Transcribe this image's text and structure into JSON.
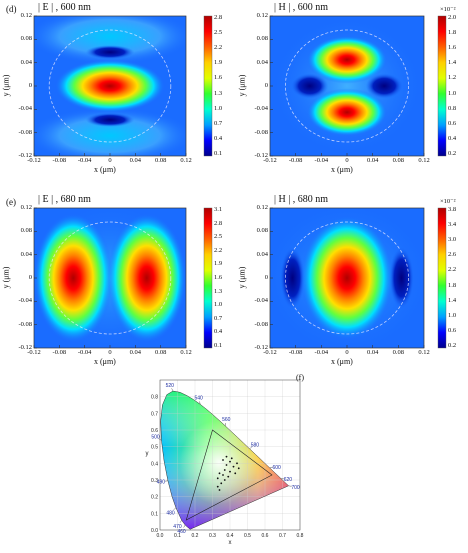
{
  "panel_labels": {
    "d": "(d)",
    "e": "(e)",
    "f": "(f)"
  },
  "colors": {
    "cmap": [
      "#00008b",
      "#0000ff",
      "#00a0ff",
      "#00ffd0",
      "#30ff30",
      "#e0ff00",
      "#ffd000",
      "#ff6000",
      "#ff0000",
      "#b00000"
    ]
  },
  "chart_data": [
    {
      "type": "heatmap",
      "id": "E600",
      "title": "| E | , 600 nm",
      "xlabel": "x (μm)",
      "ylabel": "y (μm)",
      "xticks": [
        "-0.12",
        "-0.08",
        "-0.04",
        "0",
        "0.04",
        "0.08",
        "0.12"
      ],
      "yticks": [
        "0.12",
        "0.08",
        "0.04",
        "0",
        "-0.04",
        "-0.08",
        "-0.12"
      ],
      "colorbar": {
        "ticks": [
          "2.8",
          "2.5",
          "2.2",
          "1.9",
          "1.6",
          "1.3",
          "1.0",
          "0.7",
          "0.4",
          "0.1"
        ],
        "multiplier": ""
      },
      "field": "single central elongated hotspot along x; weaker side lobes above and below"
    },
    {
      "type": "heatmap",
      "id": "H600",
      "title": "| H | , 600 nm",
      "xlabel": "x (μm)",
      "ylabel": "y (μm)",
      "xticks": [
        "-0.12",
        "-0.08",
        "-0.04",
        "0",
        "0.04",
        "0.08",
        "0.12"
      ],
      "yticks": [
        "0.12",
        "0.08",
        "0.04",
        "0",
        "-0.04",
        "-0.08",
        "-0.12"
      ],
      "colorbar": {
        "ticks": [
          "2.0",
          "1.8",
          "1.6",
          "1.4",
          "1.2",
          "1.0",
          "0.8",
          "0.6",
          "0.4",
          "0.2"
        ],
        "multiplier": "×10⁻²"
      },
      "field": "two hotspots above and below centre, minima left and right"
    },
    {
      "type": "heatmap",
      "id": "E680",
      "title": "| E | , 680 nm",
      "xlabel": "x (μm)",
      "ylabel": "y (μm)",
      "xticks": [
        "-0.12",
        "-0.08",
        "-0.04",
        "0",
        "0.04",
        "0.08",
        "0.12"
      ],
      "yticks": [
        "0.12",
        "0.08",
        "0.04",
        "0",
        "-0.04",
        "-0.08",
        "-0.12"
      ],
      "colorbar": {
        "ticks": [
          "3.1",
          "2.8",
          "2.5",
          "2.2",
          "1.9",
          "1.6",
          "1.3",
          "1.0",
          "0.7",
          "0.4",
          "0.1"
        ],
        "multiplier": ""
      },
      "field": "two hotspots at x = ±0.06 μm"
    },
    {
      "type": "heatmap",
      "id": "H680",
      "title": "| H | , 680 nm",
      "xlabel": "x (μm)",
      "ylabel": "y (μm)",
      "xticks": [
        "-0.12",
        "-0.08",
        "-0.04",
        "0",
        "0.04",
        "0.08",
        "0.12"
      ],
      "yticks": [
        "0.12",
        "0.08",
        "0.04",
        "0",
        "-0.04",
        "-0.08",
        "-0.12"
      ],
      "colorbar": {
        "ticks": [
          "3.8",
          "3.4",
          "3.0",
          "2.6",
          "2.2",
          "1.8",
          "1.4",
          "1.0",
          "0.6",
          "0.2"
        ],
        "multiplier": "×10⁻²"
      },
      "field": "single central hotspot elongated along y"
    },
    {
      "type": "scatter",
      "id": "CIE",
      "xlabel": "x",
      "ylabel": "y",
      "xlim": [
        0,
        0.8
      ],
      "ylim": [
        0,
        0.9
      ],
      "xticks": [
        "0.0",
        "0.1",
        "0.2",
        "0.3",
        "0.4",
        "0.5",
        "0.6",
        "0.7",
        "0.8"
      ],
      "yticks": [
        "0.0",
        "0.1",
        "0.2",
        "0.3",
        "0.4",
        "0.5",
        "0.6",
        "0.7",
        "0.8"
      ],
      "locus_labels": [
        {
          "text": "460",
          "x": 0.144,
          "y": 0.03
        },
        {
          "text": "470",
          "x": 0.124,
          "y": 0.058
        },
        {
          "text": "480",
          "x": 0.091,
          "y": 0.133
        },
        {
          "text": "490",
          "x": 0.045,
          "y": 0.295
        },
        {
          "text": "500",
          "x": 0.008,
          "y": 0.538
        },
        {
          "text": "520",
          "x": 0.074,
          "y": 0.834
        },
        {
          "text": "540",
          "x": 0.23,
          "y": 0.754
        },
        {
          "text": "560",
          "x": 0.373,
          "y": 0.624
        },
        {
          "text": "580",
          "x": 0.512,
          "y": 0.487
        },
        {
          "text": "600",
          "x": 0.627,
          "y": 0.373
        },
        {
          "text": "620",
          "x": 0.691,
          "y": 0.308
        },
        {
          "text": "700",
          "x": 0.735,
          "y": 0.265
        }
      ],
      "points": [
        {
          "x": 0.38,
          "y": 0.44
        },
        {
          "x": 0.41,
          "y": 0.43
        },
        {
          "x": 0.36,
          "y": 0.42
        },
        {
          "x": 0.4,
          "y": 0.41
        },
        {
          "x": 0.44,
          "y": 0.4
        },
        {
          "x": 0.38,
          "y": 0.39
        },
        {
          "x": 0.42,
          "y": 0.38
        },
        {
          "x": 0.45,
          "y": 0.37
        },
        {
          "x": 0.37,
          "y": 0.36
        },
        {
          "x": 0.4,
          "y": 0.35
        },
        {
          "x": 0.34,
          "y": 0.34
        },
        {
          "x": 0.43,
          "y": 0.34
        },
        {
          "x": 0.36,
          "y": 0.33
        },
        {
          "x": 0.39,
          "y": 0.32
        },
        {
          "x": 0.33,
          "y": 0.31
        },
        {
          "x": 0.37,
          "y": 0.3
        },
        {
          "x": 0.35,
          "y": 0.28
        },
        {
          "x": 0.33,
          "y": 0.26
        },
        {
          "x": 0.34,
          "y": 0.24
        }
      ],
      "triangle": [
        {
          "x": 0.64,
          "y": 0.33
        },
        {
          "x": 0.3,
          "y": 0.6
        },
        {
          "x": 0.15,
          "y": 0.06
        }
      ]
    }
  ]
}
